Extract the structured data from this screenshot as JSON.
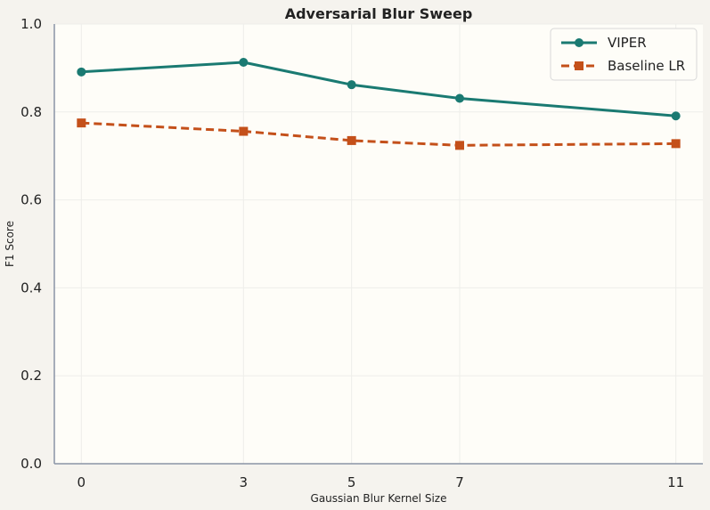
{
  "chart_data": {
    "type": "line",
    "title": "Adversarial Blur Sweep",
    "xlabel": "Gaussian Blur Kernel Size",
    "ylabel": "F1 Score",
    "x": [
      0,
      3,
      5,
      7,
      11
    ],
    "xlim": [
      -0.5,
      11.5
    ],
    "ylim": [
      0,
      1
    ],
    "yticks": [
      "0.0",
      "0.2",
      "0.4",
      "0.6",
      "0.8",
      "1.0"
    ],
    "xticks": [
      "0",
      "3",
      "5",
      "7",
      "11"
    ],
    "grid": true,
    "legend_position": "top-right",
    "series": [
      {
        "name": "VIPER",
        "values": [
          0.891,
          0.913,
          0.862,
          0.831,
          0.791
        ],
        "color": "#1a7a72",
        "marker": "circle",
        "line_style": "solid"
      },
      {
        "name": "Baseline LR",
        "values": [
          0.775,
          0.756,
          0.735,
          0.724,
          0.728
        ],
        "color": "#c4501a",
        "marker": "square",
        "line_style": "dashed"
      }
    ]
  }
}
